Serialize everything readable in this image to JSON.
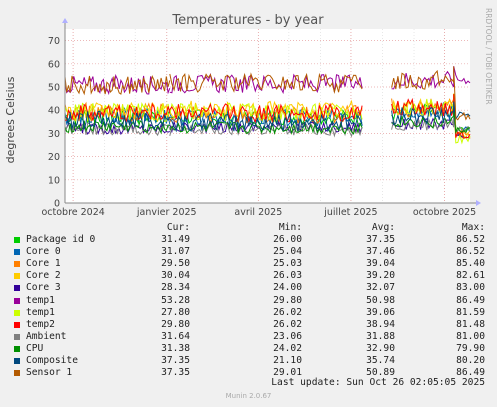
{
  "chart_data": {
    "type": "line",
    "title": "Temperatures - by year",
    "ylabel": "degrees Celsius",
    "watermark": "RRDTOOL / TOBI OETIKER",
    "ylim": [
      0,
      75
    ],
    "yticks": [
      0,
      10,
      20,
      30,
      40,
      50,
      60,
      70
    ],
    "xticks": [
      "octobre 2024",
      "janvier 2025",
      "avril 2025",
      "juillet 2025",
      "octobre 2025"
    ],
    "x_domain": [
      "2024-09-23",
      "2025-10-26"
    ],
    "xtick_dates": [
      "2024-10-01",
      "2025-01-01",
      "2025-04-01",
      "2025-07-01",
      "2025-10-01"
    ],
    "grid": true,
    "legend_headers": [
      "Cur:",
      "Min:",
      "Avg:",
      "Max:"
    ],
    "series": [
      {
        "name": "Package id 0",
        "color": "#00cc00",
        "cur": "31.49",
        "min": "26.00",
        "avg": "37.35",
        "max": "86.52"
      },
      {
        "name": "Core 0",
        "color": "#0066b3",
        "cur": "31.07",
        "min": "25.04",
        "avg": "37.46",
        "max": "86.52"
      },
      {
        "name": "Core 1",
        "color": "#ff8000",
        "cur": "29.50",
        "min": "25.03",
        "avg": "39.04",
        "max": "85.40"
      },
      {
        "name": "Core 2",
        "color": "#ffcc00",
        "cur": "30.04",
        "min": "26.03",
        "avg": "39.20",
        "max": "82.61"
      },
      {
        "name": "Core 3",
        "color": "#330099",
        "cur": "28.34",
        "min": "24.00",
        "avg": "32.07",
        "max": "83.00"
      },
      {
        "name": "temp1",
        "color": "#990099",
        "cur": "53.28",
        "min": "29.80",
        "avg": "50.98",
        "max": "86.49"
      },
      {
        "name": "temp1",
        "color": "#ccff00",
        "cur": "27.80",
        "min": "26.02",
        "avg": "39.06",
        "max": "81.59"
      },
      {
        "name": "temp2",
        "color": "#ff0000",
        "cur": "29.80",
        "min": "26.02",
        "avg": "38.94",
        "max": "81.48"
      },
      {
        "name": "Ambient",
        "color": "#808080",
        "cur": "31.64",
        "min": "23.06",
        "avg": "31.88",
        "max": "81.00"
      },
      {
        "name": "CPU",
        "color": "#008f00",
        "cur": "31.38",
        "min": "24.02",
        "avg": "32.90",
        "max": "79.90"
      },
      {
        "name": "Composite",
        "color": "#00487d",
        "cur": "37.35",
        "min": "21.10",
        "avg": "35.74",
        "max": "80.20"
      },
      {
        "name": "Sensor 1",
        "color": "#b35a00",
        "cur": "37.35",
        "min": "29.01",
        "avg": "50.89",
        "max": "86.49"
      }
    ]
  },
  "footer": {
    "last_update": "Last update: Sun Oct 26 02:05:05 2025",
    "munin_version": "Munin 2.0.67"
  }
}
